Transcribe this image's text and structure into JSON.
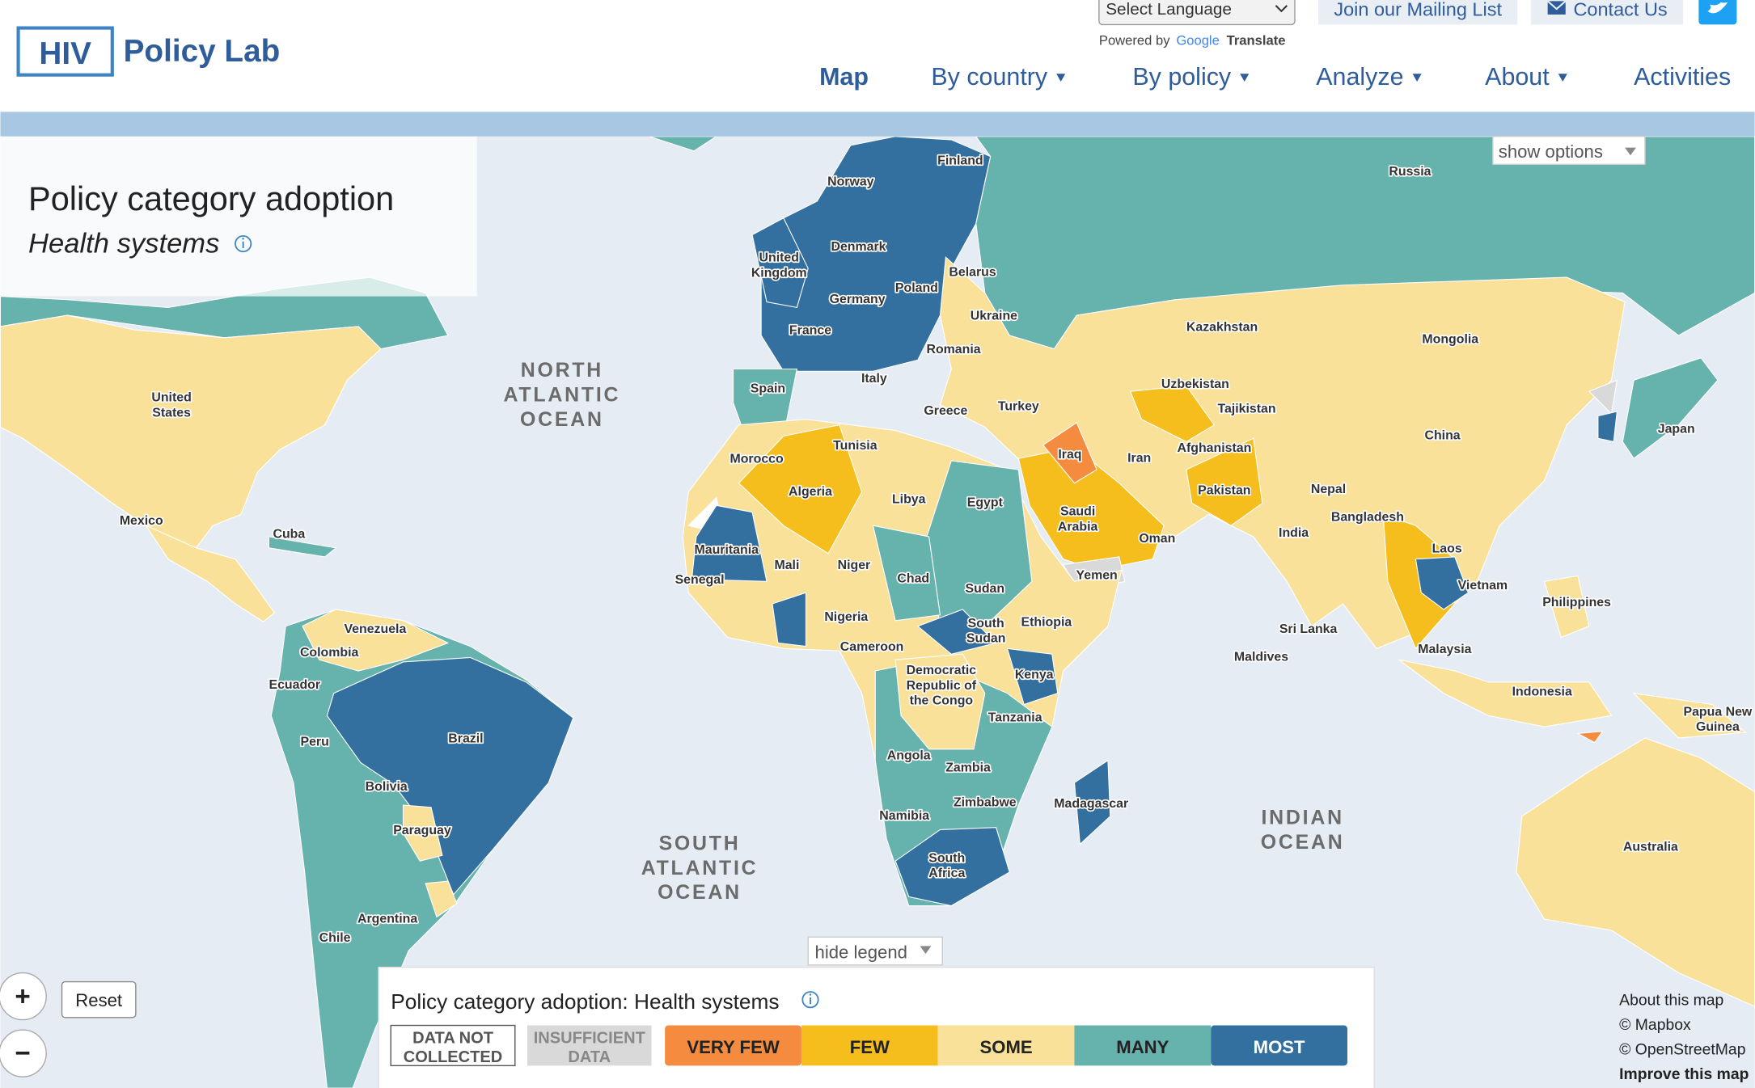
{
  "header": {
    "logo_box": "HIV",
    "logo_text": "Policy Lab",
    "language_select": "Select Language",
    "powered_by": "Powered by",
    "google": "Google",
    "translate": "Translate",
    "mailing_list": "Join our Mailing List",
    "contact": "Contact Us"
  },
  "nav": [
    "Map",
    "By country",
    "By policy",
    "Analyze",
    "About",
    "Activities"
  ],
  "panel": {
    "title": "Policy category adoption",
    "subtitle": "Health systems"
  },
  "show_options": "show options",
  "hide_legend": "hide legend",
  "legend": {
    "title": "Policy category adoption: Health systems",
    "items": [
      {
        "label": "DATA NOT COLLECTED",
        "color": "#ffffff"
      },
      {
        "label": "INSUFFICIENT DATA",
        "color": "#d9d9d9"
      },
      {
        "label": "VERY FEW",
        "color": "#f58b3e"
      },
      {
        "label": "FEW",
        "color": "#f5be1d"
      },
      {
        "label": "SOME",
        "color": "#f9e19a"
      },
      {
        "label": "MANY",
        "color": "#66b2ac"
      },
      {
        "label": "MOST",
        "color": "#33709f"
      }
    ]
  },
  "controls": {
    "zoom_in": "+",
    "zoom_out": "−",
    "reset": "Reset"
  },
  "attribution": [
    "About this map",
    "© Mapbox",
    "© OpenStreetMap",
    "Improve this map"
  ],
  "oceans": [
    {
      "lines": [
        "NORTH",
        "ATLANTIC",
        "OCEAN"
      ]
    },
    {
      "lines": [
        "SOUTH",
        "ATLANTIC",
        "OCEAN"
      ]
    },
    {
      "lines": [
        "INDIAN",
        "OCEAN"
      ]
    }
  ],
  "countries": [
    {
      "lines": [
        "Norway"
      ]
    },
    {
      "lines": [
        "Finland"
      ]
    },
    {
      "lines": [
        "Russia"
      ]
    },
    {
      "lines": [
        "Denmark"
      ]
    },
    {
      "lines": [
        "United",
        "Kingdom"
      ]
    },
    {
      "lines": [
        "Belarus"
      ]
    },
    {
      "lines": [
        "Poland"
      ]
    },
    {
      "lines": [
        "Germany"
      ]
    },
    {
      "lines": [
        "Ukraine"
      ]
    },
    {
      "lines": [
        "France"
      ]
    },
    {
      "lines": [
        "Kazakhstan"
      ]
    },
    {
      "lines": [
        "Mongolia"
      ]
    },
    {
      "lines": [
        "Romania"
      ]
    },
    {
      "lines": [
        "United",
        "States"
      ]
    },
    {
      "lines": [
        "Italy"
      ]
    },
    {
      "lines": [
        "Spain"
      ]
    },
    {
      "lines": [
        "Uzbekistan"
      ]
    },
    {
      "lines": [
        "Tajikistan"
      ]
    },
    {
      "lines": [
        "Greece"
      ]
    },
    {
      "lines": [
        "Turkey"
      ]
    },
    {
      "lines": [
        "Japan"
      ]
    },
    {
      "lines": [
        "China"
      ]
    },
    {
      "lines": [
        "Tunisia"
      ]
    },
    {
      "lines": [
        "Afghanistan"
      ]
    },
    {
      "lines": [
        "Iraq"
      ]
    },
    {
      "lines": [
        "Iran"
      ]
    },
    {
      "lines": [
        "Morocco"
      ]
    },
    {
      "lines": [
        "Algeria"
      ]
    },
    {
      "lines": [
        "Pakistan"
      ]
    },
    {
      "lines": [
        "Nepal"
      ]
    },
    {
      "lines": [
        "Libya"
      ]
    },
    {
      "lines": [
        "Egypt"
      ]
    },
    {
      "lines": [
        "Bangladesh"
      ]
    },
    {
      "lines": [
        "Saudi",
        "Arabia"
      ]
    },
    {
      "lines": [
        "Mexico"
      ]
    },
    {
      "lines": [
        "Cuba"
      ]
    },
    {
      "lines": [
        "India"
      ]
    },
    {
      "lines": [
        "Oman"
      ]
    },
    {
      "lines": [
        "Mauritania"
      ]
    },
    {
      "lines": [
        "Laos"
      ]
    },
    {
      "lines": [
        "Mali"
      ]
    },
    {
      "lines": [
        "Niger"
      ]
    },
    {
      "lines": [
        "Chad"
      ]
    },
    {
      "lines": [
        "Yemen"
      ]
    },
    {
      "lines": [
        "Senegal"
      ]
    },
    {
      "lines": [
        "Vietnam"
      ]
    },
    {
      "lines": [
        "Sudan"
      ]
    },
    {
      "lines": [
        "Philippines"
      ]
    },
    {
      "lines": [
        "Ethiopia"
      ]
    },
    {
      "lines": [
        "Nigeria"
      ]
    },
    {
      "lines": [
        "South",
        "Sudan"
      ]
    },
    {
      "lines": [
        "Venezuela"
      ]
    },
    {
      "lines": [
        "Sri Lanka"
      ]
    },
    {
      "lines": [
        "Colombia"
      ]
    },
    {
      "lines": [
        "Cameroon"
      ]
    },
    {
      "lines": [
        "Malaysia"
      ]
    },
    {
      "lines": [
        "Maldives"
      ]
    },
    {
      "lines": [
        "Democratic",
        "Republic of",
        "the Congo"
      ]
    },
    {
      "lines": [
        "Kenya"
      ]
    },
    {
      "lines": [
        "Ecuador"
      ]
    },
    {
      "lines": [
        "Indonesia"
      ]
    },
    {
      "lines": [
        "Papua New",
        "Guinea"
      ]
    },
    {
      "lines": [
        "Tanzania"
      ]
    },
    {
      "lines": [
        "Peru"
      ]
    },
    {
      "lines": [
        "Brazil"
      ]
    },
    {
      "lines": [
        "Angola"
      ]
    },
    {
      "lines": [
        "Zambia"
      ]
    },
    {
      "lines": [
        "Bolivia"
      ]
    },
    {
      "lines": [
        "Zimbabwe"
      ]
    },
    {
      "lines": [
        "Madagascar"
      ]
    },
    {
      "lines": [
        "Namibia"
      ]
    },
    {
      "lines": [
        "Paraguay"
      ]
    },
    {
      "lines": [
        "Australia"
      ]
    },
    {
      "lines": [
        "South",
        "Africa"
      ]
    },
    {
      "lines": [
        "Argentina"
      ]
    },
    {
      "lines": [
        "Chile"
      ]
    }
  ]
}
